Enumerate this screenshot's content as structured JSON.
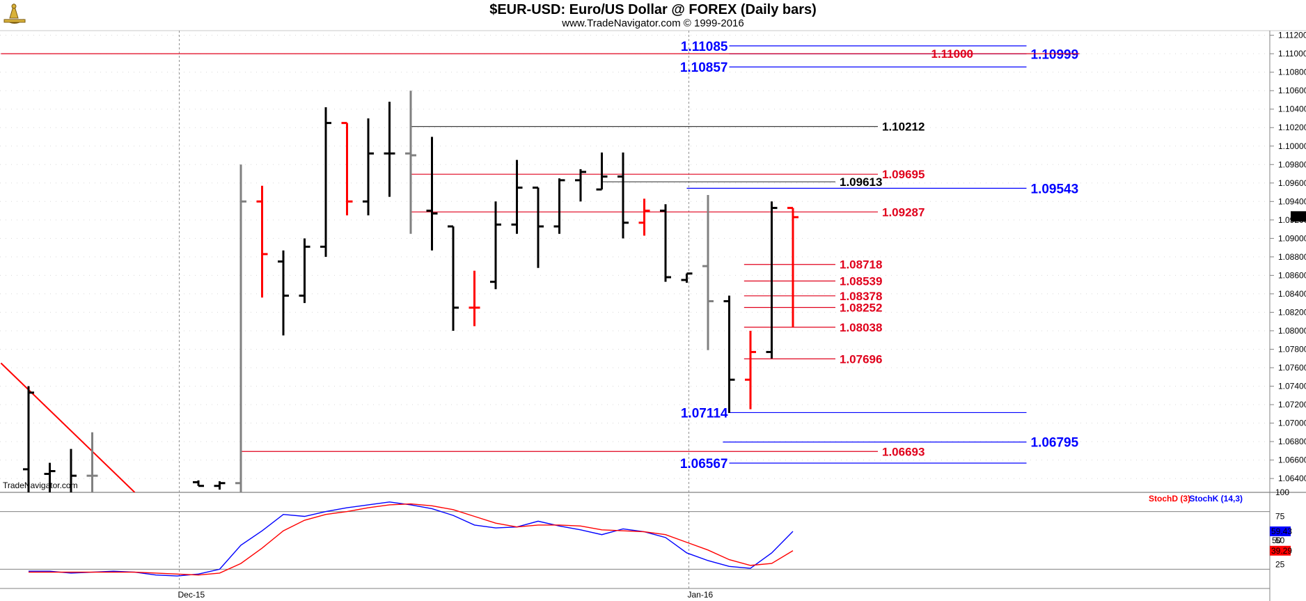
{
  "header": {
    "title": "$EUR-USD:  Euro/US Dollar @ FOREX  (Daily bars)",
    "subtitle": "www.TradeNavigator.com © 1999-2016",
    "watermark": "TradeNavigator.com",
    "logo_icon": "sextant-logo-icon"
  },
  "colors": {
    "up": "#000000",
    "down": "#ff0000",
    "neutral": "#808080",
    "blue_level": "#0000ff",
    "red_level": "#e0001b",
    "stoch_d": "#ff0000",
    "stoch_k": "#0000ff"
  },
  "chart_data": [
    {
      "type": "ohlc",
      "title": "$EUR-USD:  Euro/US Dollar @ FOREX  (Daily bars)",
      "ylim": [
        1.0625,
        1.1125
      ],
      "price_ticks": [
        "1.06400",
        "1.06600",
        "1.06800",
        "1.07000",
        "1.07200",
        "1.07400",
        "1.07600",
        "1.07800",
        "1.08000",
        "1.08200",
        "1.08400",
        "1.08600",
        "1.08800",
        "1.09000",
        "1.09200",
        "1.09400",
        "1.09600",
        "1.09800",
        "1.10000",
        "1.10200",
        "1.10400",
        "1.10600",
        "1.10800",
        "1.11000",
        "1.11200"
      ],
      "x_labels": [
        {
          "label": "Dec-15",
          "bar": 7
        },
        {
          "label": "Jan-16",
          "bar": 31
        }
      ],
      "last_price": "1.09234",
      "bars": [
        {
          "i": 0,
          "o": 1.065,
          "h": 1.074,
          "l": 1.062,
          "c": 1.0733,
          "color": "up"
        },
        {
          "i": 1,
          "o": 1.0645,
          "h": 1.0657,
          "l": 1.0615,
          "c": 1.0648,
          "color": "up"
        },
        {
          "i": 2,
          "o": 1.0622,
          "h": 1.0672,
          "l": 1.061,
          "c": 1.0643,
          "color": "up"
        },
        {
          "i": 3,
          "o": 1.0643,
          "h": 1.069,
          "l": 1.062,
          "c": 1.0643,
          "color": "neutral"
        },
        {
          "i": 8,
          "o": 1.0636,
          "h": 1.0638,
          "l": 1.0632,
          "c": 1.0632,
          "color": "up"
        },
        {
          "i": 9,
          "o": 1.0632,
          "h": 1.0637,
          "l": 1.0628,
          "c": 1.0635,
          "color": "up"
        },
        {
          "i": 10,
          "o": 1.0635,
          "h": 1.098,
          "l": 1.061,
          "c": 1.094,
          "color": "neutral"
        },
        {
          "i": 11,
          "o": 1.094,
          "h": 1.0957,
          "l": 1.0836,
          "c": 1.0883,
          "color": "down"
        },
        {
          "i": 12,
          "o": 1.0875,
          "h": 1.0887,
          "l": 1.0795,
          "c": 1.0838,
          "color": "up"
        },
        {
          "i": 13,
          "o": 1.0838,
          "h": 1.09,
          "l": 1.083,
          "c": 1.0891,
          "color": "up"
        },
        {
          "i": 14,
          "o": 1.0891,
          "h": 1.1042,
          "l": 1.088,
          "c": 1.1025,
          "color": "up"
        },
        {
          "i": 15,
          "o": 1.1025,
          "h": 1.1025,
          "l": 1.0925,
          "c": 1.094,
          "color": "down"
        },
        {
          "i": 16,
          "o": 1.094,
          "h": 1.103,
          "l": 1.0925,
          "c": 1.0992,
          "color": "up"
        },
        {
          "i": 17,
          "o": 1.0992,
          "h": 1.1048,
          "l": 1.0945,
          "c": 1.0992,
          "color": "up"
        },
        {
          "i": 18,
          "o": 1.0992,
          "h": 1.106,
          "l": 1.0905,
          "c": 1.099,
          "color": "neutral"
        },
        {
          "i": 19,
          "o": 1.093,
          "h": 1.101,
          "l": 1.0887,
          "c": 1.0927,
          "color": "up"
        },
        {
          "i": 20,
          "o": 1.0913,
          "h": 1.0913,
          "l": 1.08,
          "c": 1.0825,
          "color": "up"
        },
        {
          "i": 21,
          "o": 1.0825,
          "h": 1.0865,
          "l": 1.0805,
          "c": 1.0825,
          "color": "down"
        },
        {
          "i": 22,
          "o": 1.0853,
          "h": 1.094,
          "l": 1.0845,
          "c": 1.0915,
          "color": "up"
        },
        {
          "i": 23,
          "o": 1.0915,
          "h": 1.0985,
          "l": 1.0905,
          "c": 1.0955,
          "color": "up"
        },
        {
          "i": 24,
          "o": 1.0955,
          "h": 1.0955,
          "l": 1.0868,
          "c": 1.0913,
          "color": "up"
        },
        {
          "i": 25,
          "o": 1.0913,
          "h": 1.0965,
          "l": 1.0905,
          "c": 1.0963,
          "color": "up"
        },
        {
          "i": 26,
          "o": 1.0963,
          "h": 1.0975,
          "l": 1.094,
          "c": 1.0972,
          "color": "up"
        },
        {
          "i": 27,
          "o": 1.0953,
          "h": 1.0993,
          "l": 1.0953,
          "c": 1.0967,
          "color": "up"
        },
        {
          "i": 28,
          "o": 1.0967,
          "h": 1.0993,
          "l": 1.09,
          "c": 1.0917,
          "color": "up"
        },
        {
          "i": 29,
          "o": 1.0917,
          "h": 1.0943,
          "l": 1.0903,
          "c": 1.093,
          "color": "down"
        },
        {
          "i": 30,
          "o": 1.093,
          "h": 1.0937,
          "l": 1.0853,
          "c": 1.0858,
          "color": "up"
        },
        {
          "i": 31,
          "o": 1.0855,
          "h": 1.0862,
          "l": 1.0852,
          "c": 1.0862,
          "color": "up"
        },
        {
          "i": 32,
          "o": 1.087,
          "h": 1.0947,
          "l": 1.0779,
          "c": 1.0832,
          "color": "neutral"
        },
        {
          "i": 33,
          "o": 1.0832,
          "h": 1.0838,
          "l": 1.0711,
          "c": 1.0747,
          "color": "up"
        },
        {
          "i": 34,
          "o": 1.0747,
          "h": 1.08,
          "l": 1.0715,
          "c": 1.0777,
          "color": "down"
        },
        {
          "i": 35,
          "o": 1.0777,
          "h": 1.094,
          "l": 1.077,
          "c": 1.0933,
          "color": "up"
        },
        {
          "i": 36,
          "o": 1.0933,
          "h": 1.0933,
          "l": 1.0804,
          "c": 1.0923,
          "color": "down"
        }
      ],
      "trendline": {
        "from": {
          "bar": -1.3,
          "price": 1.0765
        },
        "to": {
          "bar": 5.0,
          "price": 1.0625
        }
      },
      "levels": [
        {
          "label": "1.11085",
          "value": 1.11085,
          "color": "blue",
          "from_bar": 33,
          "to_bar": 47,
          "label_side": "left",
          "label_bar": 33
        },
        {
          "label": "1.10857",
          "value": 1.10857,
          "color": "blue",
          "from_bar": 33,
          "to_bar": 47,
          "label_side": "left",
          "label_bar": 33
        },
        {
          "label": "1.10999",
          "value": 1.10999,
          "color": "blue",
          "from_bar": 33,
          "to_bar": 47,
          "label_side": "right",
          "label_bar": 47
        },
        {
          "label": "1.11000",
          "value": 1.11,
          "color": "red",
          "from_bar": -1.3,
          "to_bar": 49.5,
          "label_side": "center",
          "label_bar": 43.5
        },
        {
          "label": "1.10212",
          "value": 1.10212,
          "color": "black",
          "from_bar": 18,
          "to_bar": 40,
          "label_side": "right",
          "label_bar": 40
        },
        {
          "label": "1.09695",
          "value": 1.09695,
          "color": "red",
          "from_bar": 18,
          "to_bar": 40,
          "label_side": "right",
          "label_bar": 40
        },
        {
          "label": "1.09613",
          "value": 1.09613,
          "color": "black",
          "from_bar": 27,
          "to_bar": 38,
          "label_side": "right",
          "label_bar": 38
        },
        {
          "label": "1.09543",
          "value": 1.09543,
          "color": "blue",
          "from_bar": 31,
          "to_bar": 47,
          "label_side": "right",
          "label_bar": 47
        },
        {
          "label": "1.09287",
          "value": 1.09287,
          "color": "red",
          "from_bar": 18,
          "to_bar": 40,
          "label_side": "right",
          "label_bar": 40
        },
        {
          "label": "1.08718",
          "value": 1.08718,
          "color": "red",
          "from_bar": 33.7,
          "to_bar": 38,
          "label_side": "right",
          "label_bar": 38
        },
        {
          "label": "1.08539",
          "value": 1.08539,
          "color": "red",
          "from_bar": 33.7,
          "to_bar": 38,
          "label_side": "right",
          "label_bar": 38
        },
        {
          "label": "1.08378",
          "value": 1.08378,
          "color": "red",
          "from_bar": 33.7,
          "to_bar": 38,
          "label_side": "right",
          "label_bar": 38
        },
        {
          "label": "1.08252",
          "value": 1.08252,
          "color": "red",
          "from_bar": 33.7,
          "to_bar": 38,
          "label_side": "right",
          "label_bar": 38
        },
        {
          "label": "1.08038",
          "value": 1.08038,
          "color": "red",
          "from_bar": 33.7,
          "to_bar": 38,
          "label_side": "right",
          "label_bar": 38
        },
        {
          "label": "1.07696",
          "value": 1.07696,
          "color": "red",
          "from_bar": 33.7,
          "to_bar": 38,
          "label_side": "right",
          "label_bar": 38
        },
        {
          "label": "1.07114",
          "value": 1.07114,
          "color": "blue",
          "from_bar": 33,
          "to_bar": 47,
          "label_side": "left",
          "label_bar": 33
        },
        {
          "label": "1.06795",
          "value": 1.06795,
          "color": "blue",
          "from_bar": 32.7,
          "to_bar": 47,
          "label_side": "right",
          "label_bar": 47
        },
        {
          "label": "1.06693",
          "value": 1.06693,
          "color": "red",
          "from_bar": 10,
          "to_bar": 40,
          "label_side": "right",
          "label_bar": 40
        },
        {
          "label": "1.06567",
          "value": 1.06567,
          "color": "blue",
          "from_bar": 33,
          "to_bar": 47,
          "label_side": "left",
          "label_bar": 33
        }
      ]
    },
    {
      "type": "line",
      "title": "",
      "ylim": [
        0,
        100
      ],
      "y_ticks": [
        "25",
        "50",
        "75",
        "100"
      ],
      "reference_lines": [
        20,
        80
      ],
      "legend": [
        {
          "label": "StochD (3)",
          "color": "red"
        },
        {
          "label": "StochK (14,3)",
          "color": "blue"
        }
      ],
      "last_values": {
        "k": "59.43",
        "d": "39.29",
        "fifty": "50"
      },
      "series": [
        {
          "name": "StochK (14,3)",
          "color": "blue",
          "points": [
            [
              0,
              18
            ],
            [
              1,
              18
            ],
            [
              2,
              16
            ],
            [
              3,
              17
            ],
            [
              4,
              18
            ],
            [
              5,
              17
            ],
            [
              6,
              14
            ],
            [
              7,
              13
            ],
            [
              8,
              15
            ],
            [
              9,
              20
            ],
            [
              10,
              45
            ],
            [
              11,
              60
            ],
            [
              12,
              77
            ],
            [
              13,
              75
            ],
            [
              14,
              80
            ],
            [
              15,
              84
            ],
            [
              16,
              87
            ],
            [
              17,
              90
            ],
            [
              18,
              87
            ],
            [
              19,
              83
            ],
            [
              20,
              76
            ],
            [
              21,
              66
            ],
            [
              22,
              63
            ],
            [
              23,
              64
            ],
            [
              24,
              70
            ],
            [
              25,
              65
            ],
            [
              26,
              61
            ],
            [
              27,
              56
            ],
            [
              28,
              62
            ],
            [
              29,
              59
            ],
            [
              30,
              53
            ],
            [
              31,
              37
            ],
            [
              32,
              29
            ],
            [
              33,
              23
            ],
            [
              34,
              21
            ],
            [
              35,
              37
            ],
            [
              36,
              59.43
            ]
          ]
        },
        {
          "name": "StochD (3)",
          "color": "red",
          "points": [
            [
              0,
              17
            ],
            [
              1,
              17
            ],
            [
              2,
              17
            ],
            [
              3,
              17
            ],
            [
              4,
              17
            ],
            [
              5,
              17
            ],
            [
              6,
              16
            ],
            [
              7,
              15
            ],
            [
              8,
              14
            ],
            [
              9,
              16
            ],
            [
              10,
              26
            ],
            [
              11,
              42
            ],
            [
              12,
              60
            ],
            [
              13,
              71
            ],
            [
              14,
              77
            ],
            [
              15,
              80
            ],
            [
              16,
              84
            ],
            [
              17,
              87
            ],
            [
              18,
              88
            ],
            [
              19,
              86
            ],
            [
              20,
              82
            ],
            [
              21,
              75
            ],
            [
              22,
              68
            ],
            [
              23,
              64
            ],
            [
              24,
              66
            ],
            [
              25,
              66
            ],
            [
              26,
              65
            ],
            [
              27,
              61
            ],
            [
              28,
              60
            ],
            [
              29,
              59
            ],
            [
              30,
              56
            ],
            [
              31,
              48
            ],
            [
              32,
              40
            ],
            [
              33,
              30
            ],
            [
              34,
              24
            ],
            [
              35,
              26
            ],
            [
              36,
              39.29
            ]
          ]
        }
      ]
    }
  ]
}
